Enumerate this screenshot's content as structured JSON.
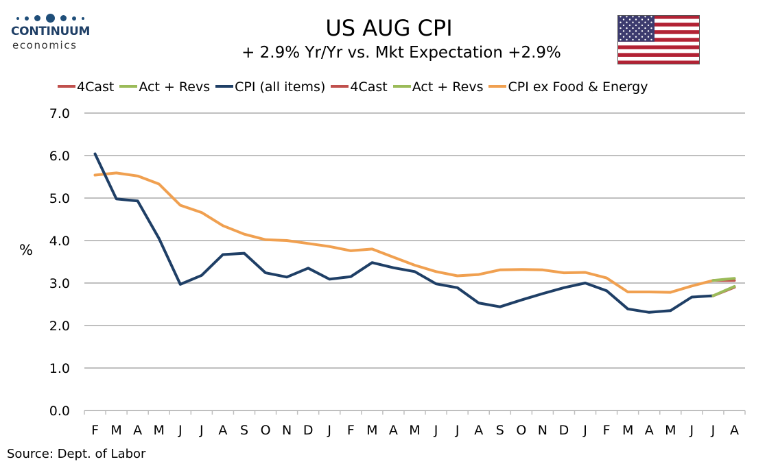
{
  "logo": {
    "name": "CONTINUUM",
    "sub": "economics"
  },
  "header": {
    "title": "US AUG CPI",
    "subtitle": "+ 2.9% Yr/Yr  vs. Mkt Expectation +2.9%"
  },
  "flag_icon": "us-flag-icon",
  "source": "Source: Dept. of Labor",
  "colors": {
    "cpi": "#1f3f66",
    "core": "#f0a050",
    "forecast": "#c0504d",
    "actual": "#9bbb59",
    "grid": "#bfbfbf"
  },
  "legend": [
    {
      "label": "4Cast",
      "color": "#c0504d"
    },
    {
      "label": "Act + Revs",
      "color": "#9bbb59"
    },
    {
      "label": "CPI (all items)",
      "color": "#1f3f66"
    },
    {
      "label": "4Cast",
      "color": "#c0504d"
    },
    {
      "label": "Act + Revs",
      "color": "#9bbb59"
    },
    {
      "label": "CPI ex Food & Energy",
      "color": "#f0a050"
    }
  ],
  "chart_data": {
    "type": "line",
    "title": "US AUG CPI",
    "subtitle": "+ 2.9% Yr/Yr  vs. Mkt Expectation +2.9%",
    "ylabel": "%",
    "xlabel": "",
    "ylim": [
      0,
      7
    ],
    "yticks": [
      "0.0",
      "1.0",
      "2.0",
      "3.0",
      "4.0",
      "5.0",
      "6.0",
      "7.0"
    ],
    "grid": true,
    "legend_position": "top",
    "categories": [
      "F",
      "M",
      "A",
      "M",
      "J",
      "J",
      "A",
      "S",
      "O",
      "N",
      "D",
      "J",
      "F",
      "M",
      "A",
      "M",
      "J",
      "J",
      "A",
      "S",
      "O",
      "N",
      "D",
      "J",
      "F",
      "M",
      "A",
      "M",
      "J",
      "J",
      "A"
    ],
    "series": [
      {
        "name": "CPI (all items)",
        "color": "#1f3f66",
        "values": [
          6.04,
          4.98,
          4.93,
          4.05,
          2.97,
          3.18,
          3.67,
          3.7,
          3.24,
          3.14,
          3.35,
          3.09,
          3.15,
          3.48,
          3.36,
          3.27,
          2.98,
          2.89,
          2.53,
          2.44,
          2.6,
          2.75,
          2.89,
          3.0,
          2.82,
          2.39,
          2.31,
          2.35,
          2.67,
          2.7,
          null
        ]
      },
      {
        "name": "Act + Revs",
        "color": "#9bbb59",
        "values": [
          null,
          null,
          null,
          null,
          null,
          null,
          null,
          null,
          null,
          null,
          null,
          null,
          null,
          null,
          null,
          null,
          null,
          null,
          null,
          null,
          null,
          null,
          null,
          null,
          null,
          null,
          null,
          null,
          null,
          2.7,
          2.92
        ]
      },
      {
        "name": "4Cast",
        "color": "#c0504d",
        "values": [
          null,
          null,
          null,
          null,
          null,
          null,
          null,
          null,
          null,
          null,
          null,
          null,
          null,
          null,
          null,
          null,
          null,
          null,
          null,
          null,
          null,
          null,
          null,
          null,
          null,
          null,
          null,
          null,
          null,
          2.7,
          2.9
        ]
      },
      {
        "name": "CPI ex Food & Energy",
        "color": "#f0a050",
        "values": [
          5.54,
          5.59,
          5.52,
          5.33,
          4.83,
          4.66,
          4.35,
          4.15,
          4.02,
          4.0,
          3.93,
          3.86,
          3.76,
          3.8,
          3.61,
          3.42,
          3.27,
          3.17,
          3.2,
          3.31,
          3.32,
          3.31,
          3.24,
          3.25,
          3.12,
          2.79,
          2.79,
          2.78,
          2.93,
          3.06,
          null
        ]
      },
      {
        "name": "Act + Revs",
        "color": "#9bbb59",
        "values": [
          null,
          null,
          null,
          null,
          null,
          null,
          null,
          null,
          null,
          null,
          null,
          null,
          null,
          null,
          null,
          null,
          null,
          null,
          null,
          null,
          null,
          null,
          null,
          null,
          null,
          null,
          null,
          null,
          null,
          3.06,
          3.11
        ]
      },
      {
        "name": "4Cast",
        "color": "#c0504d",
        "values": [
          null,
          null,
          null,
          null,
          null,
          null,
          null,
          null,
          null,
          null,
          null,
          null,
          null,
          null,
          null,
          null,
          null,
          null,
          null,
          null,
          null,
          null,
          null,
          null,
          null,
          null,
          null,
          null,
          null,
          3.06,
          3.06
        ]
      }
    ]
  }
}
